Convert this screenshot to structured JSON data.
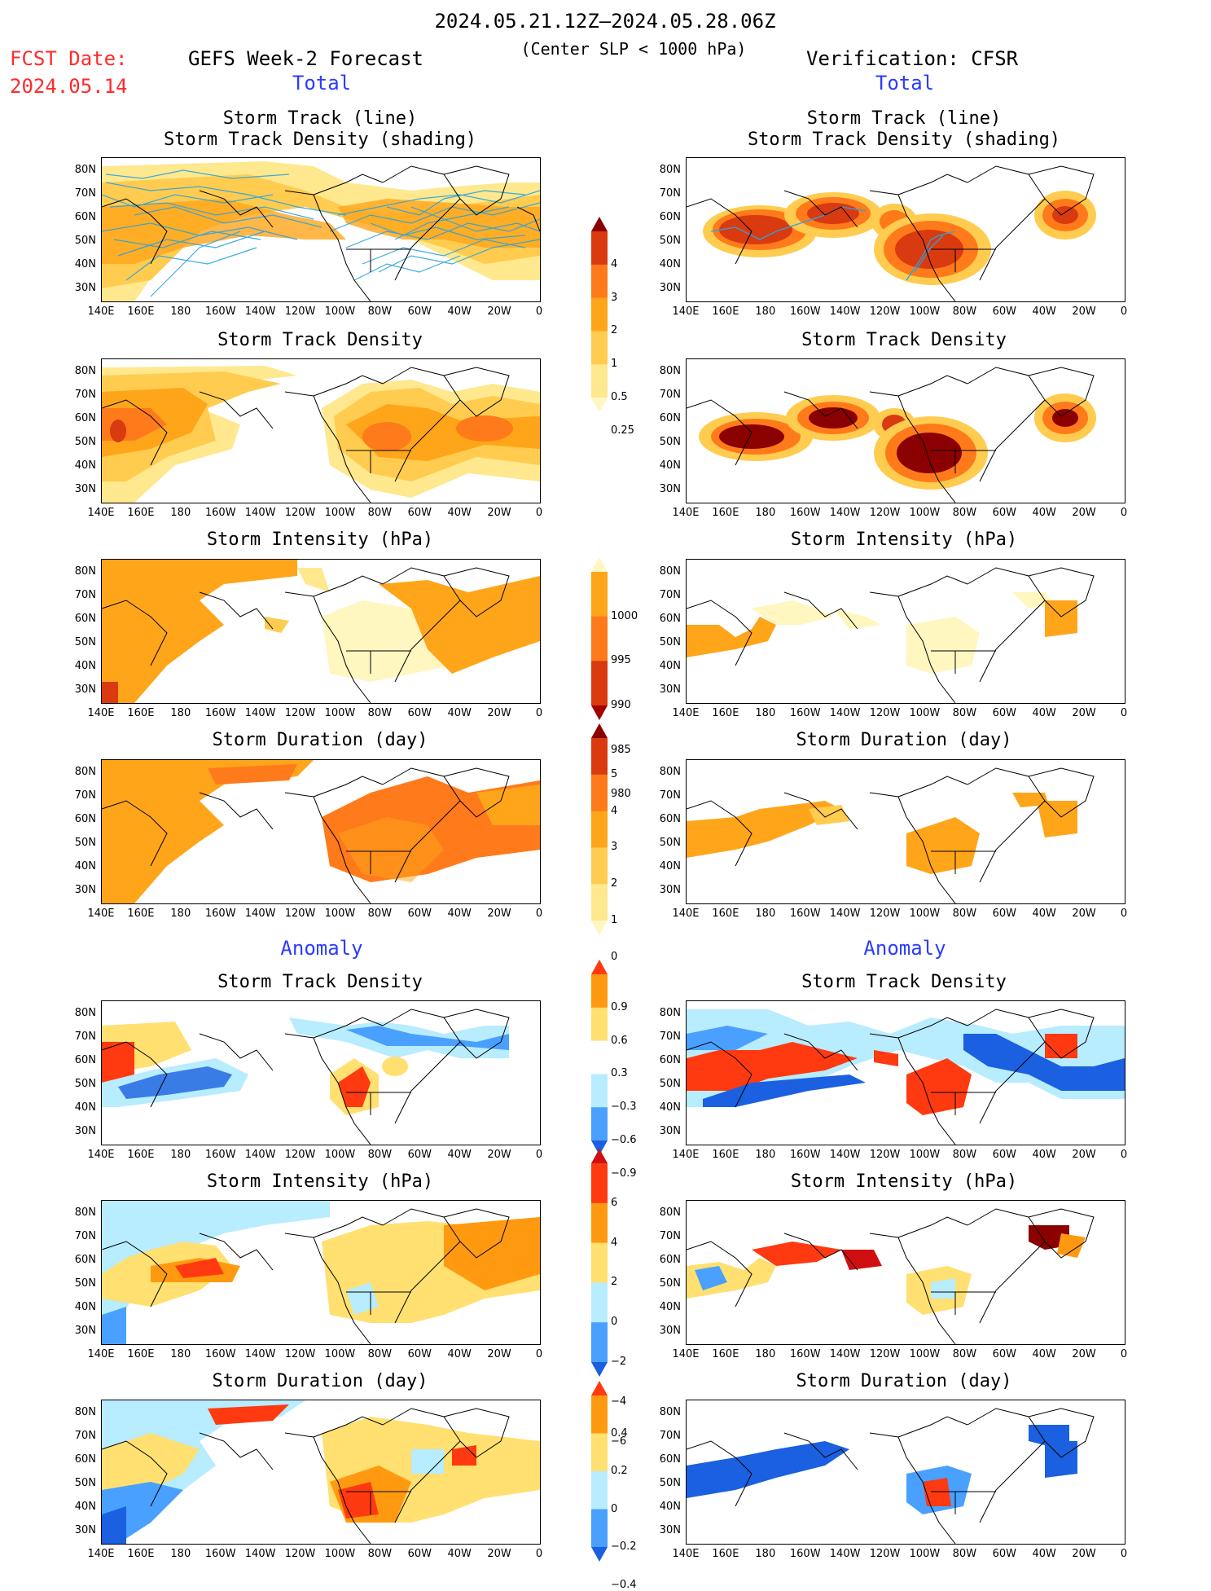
{
  "header": {
    "date_range": "2024.05.21.12Z–2024.05.28.06Z",
    "criterion": "(Center SLP < 1000 hPa)",
    "fcst_label": "FCST Date:",
    "fcst_date": "2024.05.14",
    "left_model": "GEFS Week-2 Forecast",
    "right_model": "Verification: CFSR",
    "total_label": "Total",
    "anomaly_label": "Anomaly"
  },
  "panel_titles": {
    "track_line": "Storm Track (line)",
    "track_density_shading": "Storm Track Density (shading)",
    "track_density": "Storm Track Density",
    "intensity": "Storm Intensity (hPa)",
    "duration": "Storm Duration (day)"
  },
  "axes": {
    "lat_labels": [
      "80N",
      "70N",
      "60N",
      "50N",
      "40N",
      "30N"
    ],
    "lon_labels": [
      "140E",
      "160E",
      "180",
      "160W",
      "140W",
      "120W",
      "100W",
      "80W",
      "60W",
      "40W",
      "20W",
      "0"
    ]
  },
  "colorbars": {
    "density": {
      "labels": [
        "4",
        "3",
        "2",
        "1",
        "0.5",
        "0.25"
      ],
      "colors": [
        "#8b0000",
        "#d93a10",
        "#ff7a1a",
        "#ffa51a",
        "#ffcc50",
        "#ffe88e",
        "#fff6c0"
      ]
    },
    "intensity": {
      "labels": [
        "1000",
        "995",
        "990",
        "985",
        "980"
      ],
      "colors": [
        "#fff6c0",
        "#ffa51a",
        "#ff7a1a",
        "#d93a10",
        "#a30000"
      ]
    },
    "duration": {
      "labels": [
        "5",
        "4",
        "3",
        "2",
        "1",
        "0"
      ],
      "colors": [
        "#8b0000",
        "#d93a10",
        "#ff7a1a",
        "#ffa51a",
        "#ffcc50",
        "#ffe88e",
        "#fff6c0"
      ]
    },
    "anom_density": {
      "labels": [
        "0.9",
        "0.6",
        "0.3",
        "−0.3",
        "−0.6",
        "−0.9"
      ],
      "colors": [
        "#ff3a10",
        "#ff9a10",
        "#ffe070",
        "#ffffff",
        "#b8ecff",
        "#4aa0ff",
        "#1a60e0"
      ]
    },
    "anom_intensity": {
      "labels": [
        "6",
        "4",
        "2",
        "0",
        "−2",
        "−4",
        "−6"
      ],
      "colors": [
        "#d01010",
        "#ff3a10",
        "#ff9a10",
        "#ffe070",
        "#b8ecff",
        "#4aa0ff",
        "#1a60e0"
      ]
    },
    "anom_duration": {
      "labels": [
        "0.4",
        "0.2",
        "0",
        "−0.2",
        "−0.4"
      ],
      "colors": [
        "#ff3a10",
        "#ff9a10",
        "#ffe070",
        "#b8ecff",
        "#4aa0ff",
        "#1a60e0"
      ]
    }
  }
}
